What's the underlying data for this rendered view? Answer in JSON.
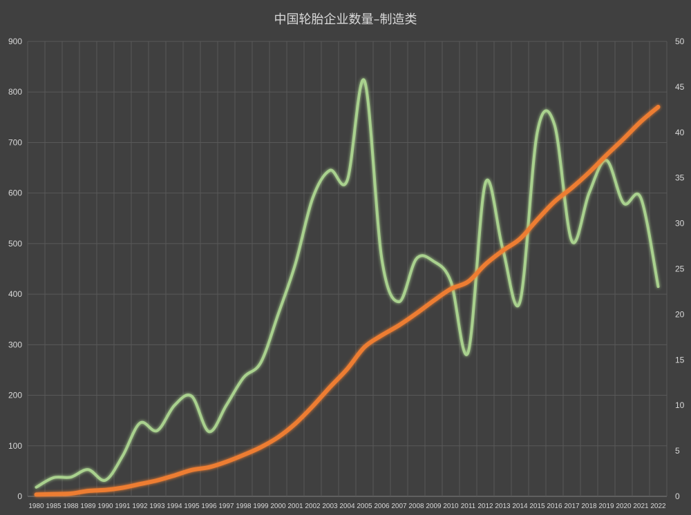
{
  "chart_data": {
    "type": "line",
    "title": "中国轮胎企业数量–制造类",
    "categories": [
      "1980",
      "1985",
      "1988",
      "1989",
      "1990",
      "1991",
      "1992",
      "1993",
      "1994",
      "1995",
      "1996",
      "1997",
      "1998",
      "1999",
      "2000",
      "2001",
      "2002",
      "2003",
      "2004",
      "2005",
      "2006",
      "2007",
      "2008",
      "2009",
      "2010",
      "2011",
      "2012",
      "2013",
      "2014",
      "2015",
      "2016",
      "2017",
      "2018",
      "2019",
      "2020",
      "2021",
      "2022"
    ],
    "y_left": {
      "min": 0,
      "max": 900,
      "ticks": [
        "0",
        "100",
        "200",
        "300",
        "400",
        "500",
        "600",
        "700",
        "800",
        "900"
      ]
    },
    "y_right": {
      "min": 0,
      "max": 50,
      "ticks": [
        "0",
        "5",
        "10",
        "15",
        "20",
        "25",
        "30",
        "35",
        "40",
        "45",
        "50"
      ]
    },
    "grid": true,
    "legend": "none",
    "series": [
      {
        "axis": "left",
        "color": "#a9d18e",
        "values": [
          18,
          37,
          38,
          53,
          32,
          80,
          145,
          130,
          180,
          198,
          128,
          180,
          235,
          265,
          360,
          460,
          590,
          645,
          625,
          822,
          470,
          385,
          470,
          465,
          425,
          285,
          620,
          490,
          385,
          720,
          735,
          505,
          600,
          665,
          580,
          590,
          415
        ]
      },
      {
        "axis": "right",
        "color": "#ed7d31",
        "values": [
          0.2,
          0.25,
          0.3,
          0.6,
          0.7,
          0.95,
          1.35,
          1.75,
          2.3,
          2.9,
          3.2,
          3.8,
          4.55,
          5.4,
          6.5,
          8,
          9.9,
          12,
          14,
          16.4,
          17.7,
          18.8,
          20.1,
          21.5,
          22.8,
          23.6,
          25.5,
          27,
          28.3,
          30.4,
          32.4,
          33.9,
          35.6,
          37.5,
          39.3,
          41.2,
          42.8
        ]
      }
    ]
  }
}
